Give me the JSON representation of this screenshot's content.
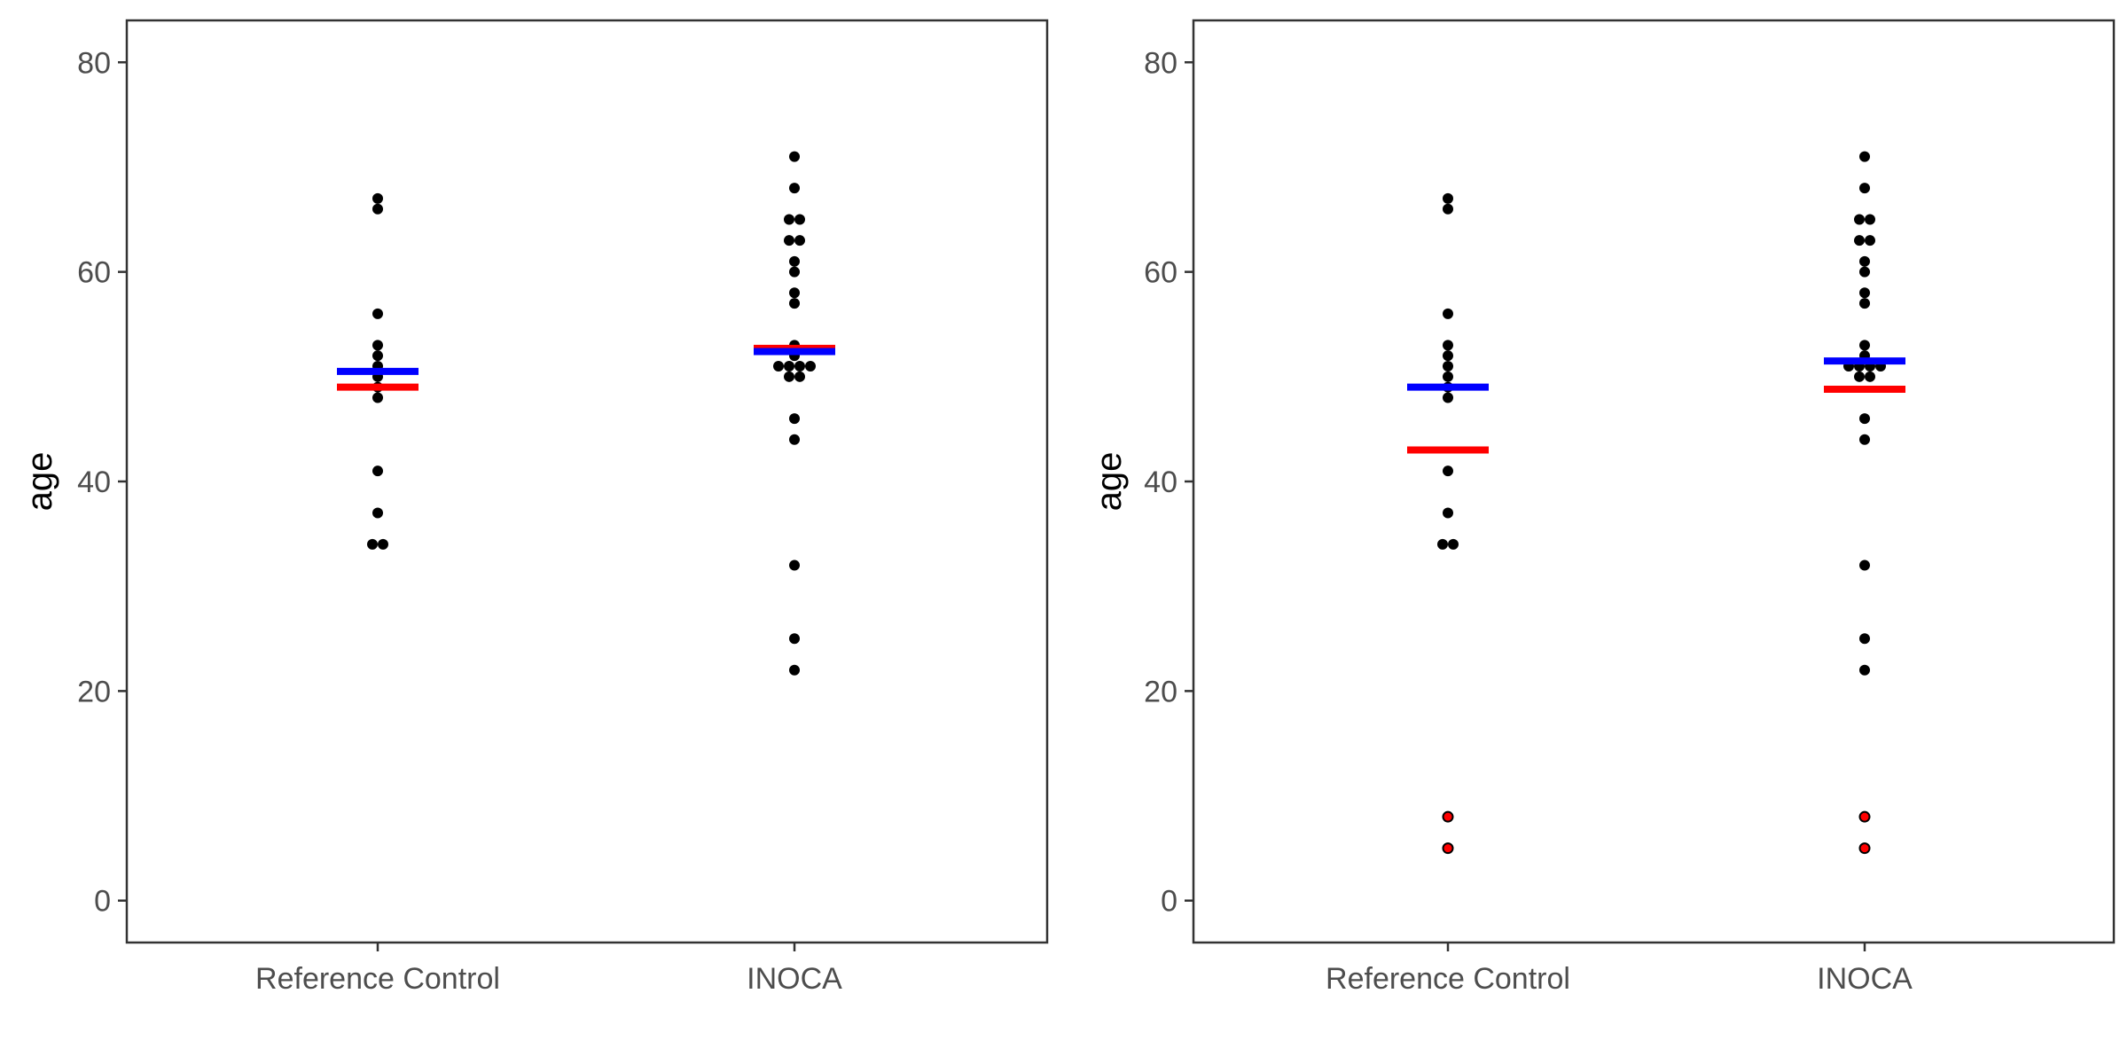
{
  "chart_data": [
    {
      "type": "scatter",
      "title": "",
      "xlabel": "",
      "ylabel": "age",
      "ylim": [
        -4,
        84
      ],
      "yticks": [
        0,
        20,
        40,
        60,
        80
      ],
      "categories": [
        "Reference Control",
        "INOCA"
      ],
      "grid": false,
      "legend": "none",
      "point_color": "#000000",
      "points": [
        {
          "category": "Reference Control",
          "values": [
            67,
            66,
            56,
            53,
            52,
            51,
            50,
            49,
            48,
            41,
            37,
            34,
            34
          ]
        },
        {
          "category": "INOCA",
          "values": [
            71,
            68,
            65,
            65,
            63,
            63,
            61,
            60,
            58,
            57,
            53,
            52,
            51,
            51,
            51,
            51,
            50,
            50,
            46,
            44,
            32,
            25,
            22
          ]
        }
      ],
      "mean_lines": [
        {
          "category": "Reference Control",
          "value": 50.5,
          "color": "#0000ff"
        },
        {
          "category": "Reference Control",
          "value": 49.0,
          "color": "#ff0000"
        },
        {
          "category": "INOCA",
          "value": 52.7,
          "color": "#ff0000"
        },
        {
          "category": "INOCA",
          "value": 52.4,
          "color": "#0000ff"
        }
      ]
    },
    {
      "type": "scatter",
      "title": "",
      "xlabel": "",
      "ylabel": "age",
      "ylim": [
        -4,
        84
      ],
      "yticks": [
        0,
        20,
        40,
        60,
        80
      ],
      "categories": [
        "Reference Control",
        "INOCA"
      ],
      "grid": false,
      "legend": "none",
      "point_color": "#000000",
      "points": [
        {
          "category": "Reference Control",
          "values": [
            67,
            66,
            56,
            53,
            52,
            51,
            50,
            49,
            48,
            41,
            37,
            34,
            34
          ]
        },
        {
          "category": "INOCA",
          "values": [
            71,
            68,
            65,
            65,
            63,
            63,
            61,
            60,
            58,
            57,
            53,
            52,
            51,
            51,
            51,
            51,
            50,
            50,
            46,
            44,
            32,
            25,
            22
          ]
        }
      ],
      "outlier_points": [
        {
          "category": "Reference Control",
          "values": [
            8,
            5
          ],
          "color": "#ff0000"
        },
        {
          "category": "INOCA",
          "values": [
            8,
            5
          ],
          "color": "#ff0000"
        }
      ],
      "mean_lines": [
        {
          "category": "Reference Control",
          "value": 49.0,
          "color": "#0000ff"
        },
        {
          "category": "Reference Control",
          "value": 43.0,
          "color": "#ff0000"
        },
        {
          "category": "INOCA",
          "value": 51.5,
          "color": "#0000ff"
        },
        {
          "category": "INOCA",
          "value": 48.8,
          "color": "#ff0000"
        }
      ]
    }
  ]
}
